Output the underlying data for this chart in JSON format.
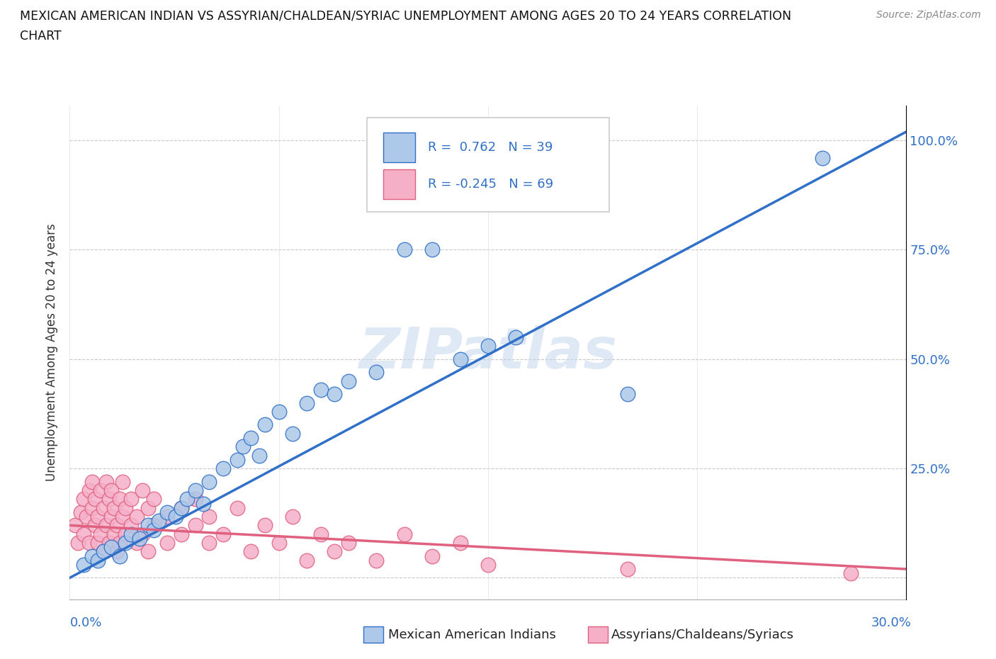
{
  "title_line1": "MEXICAN AMERICAN INDIAN VS ASSYRIAN/CHALDEAN/SYRIAC UNEMPLOYMENT AMONG AGES 20 TO 24 YEARS CORRELATION",
  "title_line2": "CHART",
  "source": "Source: ZipAtlas.com",
  "ylabel": "Unemployment Among Ages 20 to 24 years",
  "xlim": [
    0.0,
    0.3
  ],
  "ylim": [
    -0.05,
    1.08
  ],
  "ytick_positions": [
    0.0,
    0.25,
    0.5,
    0.75,
    1.0
  ],
  "ytick_labels": [
    "",
    "25.0%",
    "50.0%",
    "75.0%",
    "100.0%"
  ],
  "xtick_positions": [
    0.0,
    0.075,
    0.15,
    0.225,
    0.3
  ],
  "blue_color": "#adc8e8",
  "pink_color": "#f5b0c8",
  "blue_line_color": "#3070c8",
  "pink_line_color": "#e06080",
  "blue_scatter": [
    [
      0.005,
      0.03
    ],
    [
      0.008,
      0.05
    ],
    [
      0.01,
      0.04
    ],
    [
      0.012,
      0.06
    ],
    [
      0.015,
      0.07
    ],
    [
      0.018,
      0.05
    ],
    [
      0.02,
      0.08
    ],
    [
      0.022,
      0.1
    ],
    [
      0.025,
      0.09
    ],
    [
      0.028,
      0.12
    ],
    [
      0.03,
      0.11
    ],
    [
      0.032,
      0.13
    ],
    [
      0.035,
      0.15
    ],
    [
      0.038,
      0.14
    ],
    [
      0.04,
      0.16
    ],
    [
      0.042,
      0.18
    ],
    [
      0.045,
      0.2
    ],
    [
      0.048,
      0.17
    ],
    [
      0.05,
      0.22
    ],
    [
      0.055,
      0.25
    ],
    [
      0.06,
      0.27
    ],
    [
      0.062,
      0.3
    ],
    [
      0.065,
      0.32
    ],
    [
      0.068,
      0.28
    ],
    [
      0.07,
      0.35
    ],
    [
      0.075,
      0.38
    ],
    [
      0.08,
      0.33
    ],
    [
      0.085,
      0.4
    ],
    [
      0.09,
      0.43
    ],
    [
      0.095,
      0.42
    ],
    [
      0.1,
      0.45
    ],
    [
      0.11,
      0.47
    ],
    [
      0.12,
      0.75
    ],
    [
      0.13,
      0.75
    ],
    [
      0.14,
      0.5
    ],
    [
      0.15,
      0.53
    ],
    [
      0.16,
      0.55
    ],
    [
      0.2,
      0.42
    ],
    [
      0.27,
      0.96
    ]
  ],
  "pink_scatter": [
    [
      0.002,
      0.12
    ],
    [
      0.003,
      0.08
    ],
    [
      0.004,
      0.15
    ],
    [
      0.005,
      0.1
    ],
    [
      0.005,
      0.18
    ],
    [
      0.006,
      0.14
    ],
    [
      0.007,
      0.2
    ],
    [
      0.007,
      0.08
    ],
    [
      0.008,
      0.16
    ],
    [
      0.008,
      0.22
    ],
    [
      0.009,
      0.12
    ],
    [
      0.009,
      0.18
    ],
    [
      0.01,
      0.08
    ],
    [
      0.01,
      0.14
    ],
    [
      0.011,
      0.2
    ],
    [
      0.011,
      0.1
    ],
    [
      0.012,
      0.16
    ],
    [
      0.012,
      0.06
    ],
    [
      0.013,
      0.22
    ],
    [
      0.013,
      0.12
    ],
    [
      0.014,
      0.18
    ],
    [
      0.014,
      0.08
    ],
    [
      0.015,
      0.14
    ],
    [
      0.015,
      0.2
    ],
    [
      0.016,
      0.1
    ],
    [
      0.016,
      0.16
    ],
    [
      0.017,
      0.06
    ],
    [
      0.017,
      0.12
    ],
    [
      0.018,
      0.18
    ],
    [
      0.018,
      0.08
    ],
    [
      0.019,
      0.14
    ],
    [
      0.019,
      0.22
    ],
    [
      0.02,
      0.1
    ],
    [
      0.02,
      0.16
    ],
    [
      0.022,
      0.12
    ],
    [
      0.022,
      0.18
    ],
    [
      0.024,
      0.08
    ],
    [
      0.024,
      0.14
    ],
    [
      0.026,
      0.2
    ],
    [
      0.026,
      0.1
    ],
    [
      0.028,
      0.16
    ],
    [
      0.028,
      0.06
    ],
    [
      0.03,
      0.12
    ],
    [
      0.03,
      0.18
    ],
    [
      0.035,
      0.14
    ],
    [
      0.035,
      0.08
    ],
    [
      0.04,
      0.16
    ],
    [
      0.04,
      0.1
    ],
    [
      0.045,
      0.18
    ],
    [
      0.045,
      0.12
    ],
    [
      0.05,
      0.14
    ],
    [
      0.05,
      0.08
    ],
    [
      0.055,
      0.1
    ],
    [
      0.06,
      0.16
    ],
    [
      0.065,
      0.06
    ],
    [
      0.07,
      0.12
    ],
    [
      0.075,
      0.08
    ],
    [
      0.08,
      0.14
    ],
    [
      0.085,
      0.04
    ],
    [
      0.09,
      0.1
    ],
    [
      0.095,
      0.06
    ],
    [
      0.1,
      0.08
    ],
    [
      0.11,
      0.04
    ],
    [
      0.12,
      0.1
    ],
    [
      0.13,
      0.05
    ],
    [
      0.14,
      0.08
    ],
    [
      0.15,
      0.03
    ],
    [
      0.2,
      0.02
    ],
    [
      0.28,
      0.01
    ]
  ],
  "blue_trend_x": [
    0.0,
    0.3
  ],
  "blue_trend_y": [
    0.0,
    1.02
  ],
  "pink_trend_x": [
    0.0,
    0.3
  ],
  "pink_trend_y": [
    0.12,
    0.02
  ],
  "legend_r1": "R =  0.762   N = 39",
  "legend_r2": "R = -0.245   N = 69",
  "watermark": "ZIPatlas"
}
